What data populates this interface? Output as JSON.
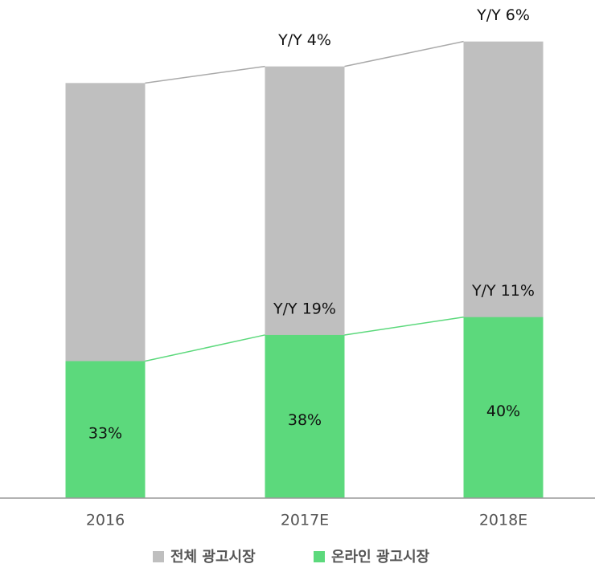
{
  "chart_data": {
    "type": "bar",
    "categories": [
      "2016",
      "2017E",
      "2018E"
    ],
    "series": [
      {
        "name": "전체 광고시장",
        "color": "#bfbfbf",
        "values": [
          100,
          104,
          110
        ]
      },
      {
        "name": "온라인 광고시장",
        "color": "#5cd97c",
        "values": [
          33,
          39.3,
          43.6
        ]
      }
    ],
    "total_yoy_labels": [
      null,
      "Y/Y 4%",
      "Y/Y 6%"
    ],
    "online_yoy_labels": [
      null,
      "Y/Y 19%",
      "Y/Y 11%"
    ],
    "online_share_labels": [
      "33%",
      "38%",
      "40%"
    ],
    "ylim": [
      0,
      120
    ],
    "legend": "bottom"
  }
}
